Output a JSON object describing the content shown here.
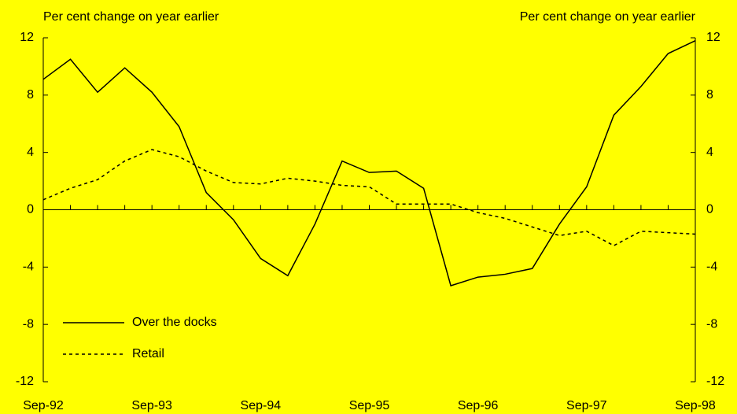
{
  "chart_data": {
    "type": "line",
    "y_label": "Per cent change on year earlier",
    "y2_label": "Per cent change on year earlier",
    "categories": [
      "Sep-92",
      null,
      null,
      null,
      "Sep-93",
      null,
      null,
      null,
      "Sep-94",
      null,
      null,
      null,
      "Sep-95",
      null,
      null,
      null,
      "Sep-96",
      null,
      null,
      null,
      "Sep-97",
      null,
      null,
      null,
      "Sep-98"
    ],
    "series": [
      {
        "name": "Over the docks",
        "color": "#000000",
        "line_style": "solid",
        "values": [
          9.1,
          10.5,
          8.2,
          9.9,
          8.2,
          5.8,
          1.2,
          -0.7,
          -3.4,
          -4.6,
          -1.0,
          3.4,
          2.6,
          2.7,
          1.5,
          -5.3,
          -4.7,
          -4.5,
          -4.1,
          -1.0,
          1.6,
          6.6,
          8.6,
          10.9,
          11.8
        ]
      },
      {
        "name": "Retail",
        "color": "#000000",
        "line_style": "dashed",
        "values": [
          0.7,
          1.5,
          2.1,
          3.4,
          4.2,
          3.7,
          2.7,
          1.9,
          1.8,
          2.2,
          2.0,
          1.7,
          1.6,
          0.4,
          0.4,
          0.4,
          -0.2,
          -0.6,
          -1.2,
          -1.8,
          -1.5,
          -2.5,
          -1.5,
          -1.6,
          -1.7
        ]
      }
    ],
    "ylim": [
      -12,
      12
    ],
    "yticks": [
      -12,
      -8,
      -4,
      0,
      4,
      8,
      12
    ],
    "y2lim": [
      -12,
      12
    ],
    "y2ticks": [
      -12,
      -8,
      -4,
      0,
      4,
      8,
      12
    ],
    "legend": "lower left",
    "background": "#ffff00"
  }
}
